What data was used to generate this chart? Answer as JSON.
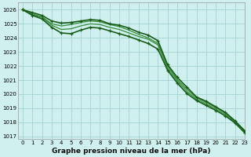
{
  "title": "Graphe pression niveau de la mer (hPa)",
  "bg_color": "#cff0ee",
  "grid_color": "#aad8d4",
  "line_color_dark": "#1a5c1a",
  "line_color_light": "#3a8c3a",
  "xlim": [
    -0.5,
    23
  ],
  "ylim": [
    1016.8,
    1026.5
  ],
  "yticks": [
    1017,
    1018,
    1019,
    1020,
    1021,
    1022,
    1023,
    1024,
    1025,
    1026
  ],
  "xticks": [
    0,
    1,
    2,
    3,
    4,
    5,
    6,
    7,
    8,
    9,
    10,
    11,
    12,
    13,
    14,
    15,
    16,
    17,
    18,
    19,
    20,
    21,
    22,
    23
  ],
  "series": [
    {
      "values": [
        1026.0,
        1025.8,
        1025.6,
        1025.2,
        1025.05,
        1025.1,
        1025.2,
        1025.3,
        1025.25,
        1025.0,
        1024.9,
        1024.7,
        1024.4,
        1024.2,
        1023.8,
        1022.1,
        1021.2,
        1020.5,
        1019.8,
        1019.5,
        1019.1,
        1018.7,
        1018.1,
        1017.4
      ],
      "marker": true,
      "color": "#1a5c1a",
      "lw": 1.2
    },
    {
      "values": [
        1026.0,
        1025.7,
        1025.5,
        1025.0,
        1024.85,
        1024.95,
        1025.1,
        1025.2,
        1025.15,
        1024.95,
        1024.8,
        1024.55,
        1024.25,
        1024.0,
        1023.6,
        1022.0,
        1021.05,
        1020.35,
        1019.75,
        1019.4,
        1019.05,
        1018.65,
        1018.05,
        1017.35
      ],
      "marker": false,
      "color": "#3a8c3a",
      "lw": 0.9
    },
    {
      "values": [
        1026.0,
        1025.65,
        1025.45,
        1024.9,
        1024.6,
        1024.65,
        1024.85,
        1025.0,
        1024.95,
        1024.75,
        1024.6,
        1024.35,
        1024.1,
        1023.9,
        1023.5,
        1021.85,
        1020.95,
        1020.2,
        1019.65,
        1019.3,
        1018.95,
        1018.55,
        1018.0,
        1017.3
      ],
      "marker": false,
      "color": "#3a8c3a",
      "lw": 0.9
    },
    {
      "values": [
        1026.0,
        1025.6,
        1025.35,
        1024.75,
        1024.35,
        1024.3,
        1024.55,
        1024.75,
        1024.7,
        1024.5,
        1024.3,
        1024.1,
        1023.85,
        1023.6,
        1023.2,
        1021.7,
        1020.8,
        1020.05,
        1019.55,
        1019.2,
        1018.85,
        1018.45,
        1017.95,
        1017.25
      ],
      "marker": true,
      "color": "#1a5c1a",
      "lw": 1.2
    }
  ]
}
